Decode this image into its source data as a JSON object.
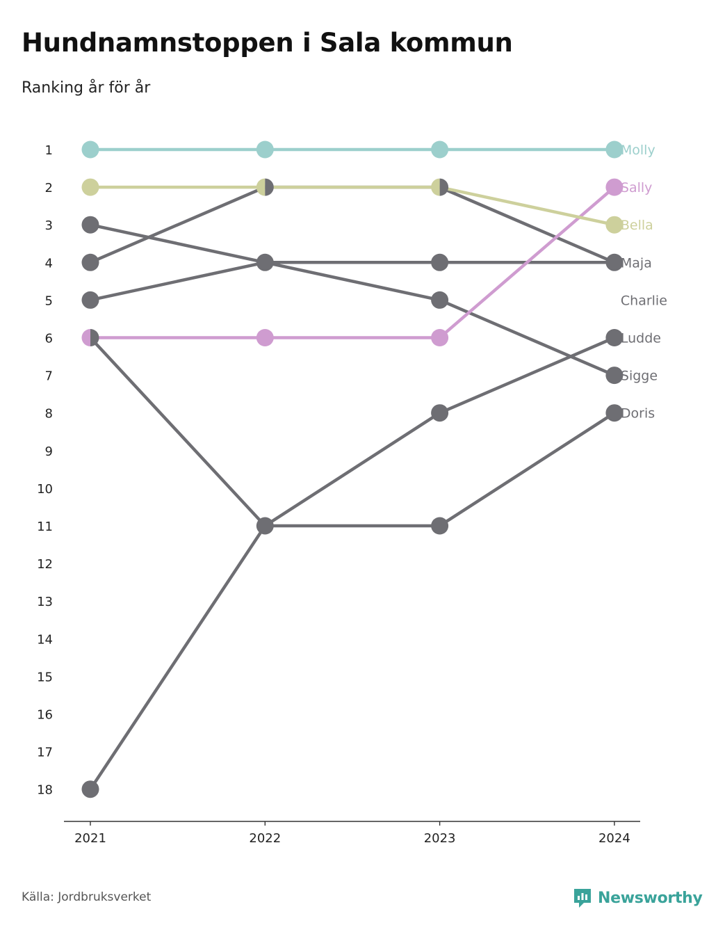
{
  "header": {
    "title": "Hundnamnstoppen i Sala kommun",
    "subtitle": "Ranking år för år"
  },
  "footer": {
    "source": "Källa: Jordbruksverket",
    "brand": "Newsworthy",
    "brand_icon": "newsworthy-logo-icon"
  },
  "colors": {
    "molly": "#9ccfcc",
    "sally": "#cf9cd0",
    "bella": "#cdd09c",
    "other": "#6e6e73",
    "axis": "#333333"
  },
  "chart_data": {
    "type": "line",
    "subtype": "bump",
    "title": "Hundnamnstoppen i Sala kommun",
    "subtitle": "Ranking år för år",
    "x": [
      "2021",
      "2022",
      "2023",
      "2024"
    ],
    "y_ticks": [
      "1",
      "2",
      "3",
      "4",
      "5",
      "6",
      "7",
      "8",
      "9",
      "10",
      "11",
      "12",
      "13",
      "14",
      "15",
      "16",
      "17",
      "18"
    ],
    "ylim": [
      1,
      18
    ],
    "y_reversed": true,
    "grid": false,
    "series": [
      {
        "name": "Molly",
        "color_key": "molly",
        "highlight": true,
        "values": [
          1,
          1,
          1,
          1
        ]
      },
      {
        "name": "Sally",
        "color_key": "sally",
        "highlight": true,
        "values": [
          6,
          6,
          6,
          2
        ]
      },
      {
        "name": "Bella",
        "color_key": "bella",
        "highlight": true,
        "values": [
          2,
          2,
          2,
          3
        ]
      },
      {
        "name": "Maja",
        "color_key": "other",
        "highlight": false,
        "values": [
          4,
          2,
          2,
          4
        ]
      },
      {
        "name": "Charlie",
        "color_key": "other",
        "highlight": false,
        "values": [
          null,
          null,
          null,
          null
        ]
      },
      {
        "name": "Ludde",
        "color_key": "other",
        "highlight": false,
        "values": [
          18,
          11,
          8,
          6
        ]
      },
      {
        "name": "Sigge",
        "color_key": "other",
        "highlight": false,
        "values": [
          3,
          4,
          5,
          7
        ]
      },
      {
        "name": "Doris",
        "color_key": "other",
        "highlight": false,
        "values": [
          6,
          11,
          11,
          8
        ]
      },
      {
        "name": "",
        "color_key": "other",
        "highlight": false,
        "values": [
          5,
          4,
          4,
          4
        ]
      }
    ]
  }
}
